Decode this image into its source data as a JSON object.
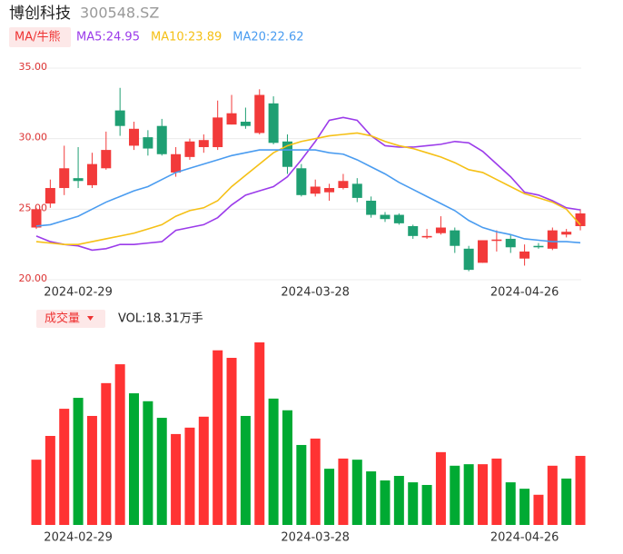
{
  "chart_data": [
    {
      "type": "candlestick",
      "title": "博创科技",
      "subtitle": "300548.SZ",
      "legend_tag": "MA/牛熊",
      "categories": [
        null,
        null,
        null,
        "2024-02-29",
        null,
        null,
        null,
        null,
        null,
        null,
        null,
        null,
        null,
        null,
        null,
        null,
        null,
        null,
        null,
        null,
        "2024-03-28",
        null,
        null,
        null,
        null,
        null,
        null,
        null,
        null,
        null,
        null,
        null,
        null,
        null,
        null,
        "2024-04-26",
        null,
        null,
        null,
        null
      ],
      "open": [
        23.7,
        25.4,
        26.5,
        27.2,
        26.7,
        27.9,
        32.0,
        29.5,
        30.1,
        30.9,
        27.6,
        28.7,
        29.4,
        29.4,
        31.0,
        31.2,
        30.4,
        32.5,
        29.8,
        27.9,
        26.1,
        26.2,
        26.5,
        26.8,
        25.6,
        24.6,
        24.6,
        23.8,
        23.0,
        23.3,
        23.5,
        22.2,
        21.2,
        22.75,
        22.9,
        21.5,
        22.4,
        22.2,
        23.2,
        23.8
      ],
      "close": [
        25.0,
        26.5,
        27.9,
        27.0,
        28.2,
        29.2,
        30.9,
        30.7,
        29.3,
        28.9,
        28.9,
        29.8,
        29.9,
        31.5,
        31.8,
        30.9,
        33.1,
        29.7,
        28.0,
        26.0,
        26.6,
        26.5,
        27.0,
        25.8,
        24.6,
        24.3,
        24.0,
        23.1,
        23.1,
        23.7,
        22.4,
        20.7,
        22.8,
        22.85,
        22.3,
        22.0,
        22.3,
        23.5,
        23.4,
        24.7
      ],
      "high": [
        25.1,
        27.1,
        29.5,
        29.4,
        29.0,
        30.5,
        33.6,
        31.2,
        30.6,
        31.4,
        29.4,
        30.0,
        30.3,
        32.7,
        33.1,
        32.2,
        33.5,
        33.0,
        30.3,
        28.2,
        27.1,
        26.8,
        27.5,
        27.2,
        25.9,
        24.8,
        24.7,
        23.9,
        23.6,
        24.5,
        23.7,
        22.4,
        22.8,
        23.5,
        23.2,
        22.5,
        22.6,
        23.7,
        23.6,
        25.0
      ],
      "low": [
        23.6,
        25.1,
        26.0,
        26.5,
        26.5,
        27.8,
        30.2,
        29.2,
        28.8,
        28.8,
        27.3,
        28.5,
        29.0,
        29.2,
        31.0,
        30.7,
        30.3,
        29.6,
        27.5,
        25.9,
        25.9,
        25.6,
        26.4,
        25.5,
        24.4,
        24.1,
        23.9,
        22.9,
        22.9,
        23.2,
        21.9,
        20.6,
        21.2,
        22.0,
        21.9,
        21.0,
        22.2,
        22.1,
        23.0,
        23.5
      ],
      "up_color": "#f23a3a",
      "down_color": "#1f9f73",
      "series": [
        {
          "name": "MA5:24.95",
          "color": "#9b3bea",
          "values": [
            23.1,
            22.7,
            22.5,
            22.4,
            22.1,
            22.2,
            22.5,
            22.5,
            22.6,
            22.7,
            23.5,
            23.7,
            23.9,
            24.4,
            25.3,
            26.0,
            26.3,
            26.6,
            27.3,
            28.5,
            29.8,
            31.3,
            31.5,
            31.3,
            30.2,
            29.5,
            29.4,
            29.4,
            29.5,
            29.6,
            29.8,
            29.7,
            29.1,
            28.2,
            27.3,
            26.2,
            26.0,
            25.6,
            25.1,
            24.95
          ]
        },
        {
          "name": "MA10:23.89",
          "color": "#f5c016",
          "values": [
            22.7,
            22.6,
            22.5,
            22.5,
            22.7,
            22.9,
            23.1,
            23.3,
            23.6,
            23.9,
            24.5,
            24.9,
            25.1,
            25.6,
            26.6,
            27.4,
            28.2,
            29.0,
            29.5,
            29.8,
            30.0,
            30.2,
            30.3,
            30.4,
            30.2,
            29.8,
            29.5,
            29.3,
            29.0,
            28.7,
            28.3,
            27.8,
            27.6,
            27.1,
            26.6,
            26.1,
            25.8,
            25.5,
            25.0,
            23.89
          ]
        },
        {
          "name": "MA20:22.62",
          "color": "#4a9cf0",
          "values": [
            23.8,
            23.9,
            24.2,
            24.5,
            25.0,
            25.5,
            25.9,
            26.3,
            26.6,
            27.1,
            27.6,
            27.9,
            28.2,
            28.5,
            28.8,
            29.0,
            29.2,
            29.2,
            29.2,
            29.2,
            29.2,
            29.0,
            28.9,
            28.5,
            28.0,
            27.5,
            26.9,
            26.4,
            25.9,
            25.4,
            24.9,
            24.2,
            23.7,
            23.4,
            23.2,
            22.9,
            22.8,
            22.7,
            22.7,
            22.62
          ]
        }
      ],
      "ylim": [
        20,
        35
      ],
      "yticks": [
        {
          "value": 20,
          "label": "20.00"
        },
        {
          "value": 25,
          "label": "25.00"
        },
        {
          "value": 30,
          "label": "30.00"
        },
        {
          "value": 35,
          "label": "35.00"
        }
      ],
      "grid": true
    },
    {
      "type": "bar",
      "title": "成交量",
      "subtitle": "VOL:18.31万手",
      "categories": [
        null,
        null,
        null,
        "2024-02-29",
        null,
        null,
        null,
        null,
        null,
        null,
        null,
        null,
        null,
        null,
        null,
        null,
        null,
        null,
        null,
        null,
        "2024-03-28",
        null,
        null,
        null,
        null,
        null,
        null,
        null,
        null,
        null,
        null,
        null,
        null,
        null,
        null,
        "2024-04-26",
        null,
        null,
        null,
        null
      ],
      "values": [
        17.3,
        23.6,
        30.8,
        33.7,
        28.9,
        37.6,
        42.6,
        34.9,
        32.8,
        28.4,
        24.1,
        25.8,
        28.7,
        46.3,
        44.3,
        28.9,
        48.4,
        33.5,
        30.4,
        21.2,
        22.9,
        14.9,
        17.6,
        17.3,
        14.2,
        11.8,
        13.0,
        11.3,
        10.6,
        19.3,
        15.7,
        16.1,
        16.1,
        17.6,
        11.3,
        9.6,
        8.0,
        15.7,
        12.3,
        18.31
      ],
      "colors": [
        "#f33",
        "#f33",
        "#f33",
        "#0a3",
        "#f33",
        "#f33",
        "#f33",
        "#0a3",
        "#0a3",
        "#0a3",
        "#f33",
        "#f33",
        "#f33",
        "#f33",
        "#f33",
        "#0a3",
        "#f33",
        "#0a3",
        "#0a3",
        "#0a3",
        "#f33",
        "#0a3",
        "#f33",
        "#0a3",
        "#0a3",
        "#0a3",
        "#0a3",
        "#0a3",
        "#0a3",
        "#f33",
        "#0a3",
        "#0a3",
        "#f33",
        "#f33",
        "#0a3",
        "#0a3",
        "#f33",
        "#f33",
        "#0a3",
        "#f33"
      ]
    }
  ]
}
